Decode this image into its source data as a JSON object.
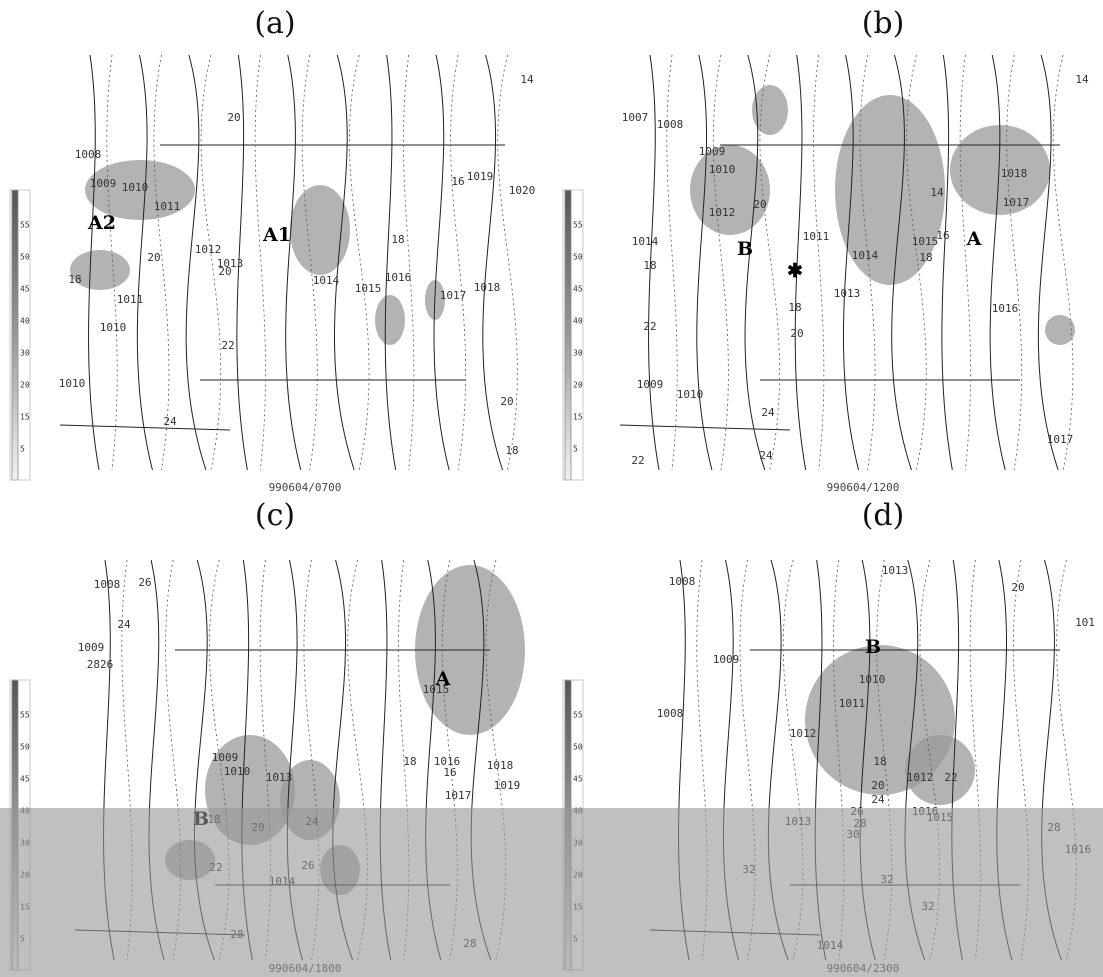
{
  "panels": [
    {
      "label": "(a)",
      "timestamp": "990604/0700",
      "features": [
        "A2",
        "A1"
      ],
      "contour_labels": [
        "1008",
        "1009",
        "1010",
        "1011",
        "1012",
        "1013",
        "1014",
        "1015",
        "1016",
        "1017",
        "1018",
        "1019",
        "1020",
        "1011",
        "1010",
        "1010",
        "20",
        "20",
        "20",
        "18",
        "18",
        "16",
        "22",
        "24",
        "20",
        "18",
        "14"
      ]
    },
    {
      "label": "(b)",
      "timestamp": "990604/1200",
      "features": [
        "B",
        "A"
      ],
      "contour_labels": [
        "1007",
        "1008",
        "1009",
        "1010",
        "1012",
        "1011",
        "1014",
        "1015",
        "1013",
        "1016",
        "1017",
        "1018",
        "1014",
        "1009",
        "1010",
        "1017",
        "20",
        "14",
        "16",
        "18",
        "18",
        "18",
        "22",
        "20",
        "24",
        "24",
        "22",
        "14"
      ]
    },
    {
      "label": "(c)",
      "timestamp": "990604/1800",
      "features": [
        "A",
        "B"
      ],
      "contour_labels": [
        "1008",
        "26",
        "24",
        "1009",
        "2826",
        "1015",
        "18",
        "1016",
        "16",
        "1017",
        "1018",
        "1019",
        "1009",
        "1010",
        "1013",
        "20",
        "24",
        "22",
        "26",
        "1014",
        "28",
        "28",
        "18"
      ]
    },
    {
      "label": "(d)",
      "timestamp": "990604/2300",
      "features": [
        "B"
      ],
      "contour_labels": [
        "1008",
        "1013",
        "20",
        "1009",
        "1008",
        "1010",
        "1011",
        "1012",
        "18",
        "20",
        "1012",
        "22",
        "24",
        "1016",
        "1015",
        "26",
        "28",
        "30",
        "1013",
        "32",
        "32",
        "32",
        "28",
        "1016",
        "1014",
        "101"
      ]
    }
  ],
  "colorbar_labels": [
    55,
    50,
    45,
    40,
    30,
    20,
    15,
    5
  ]
}
